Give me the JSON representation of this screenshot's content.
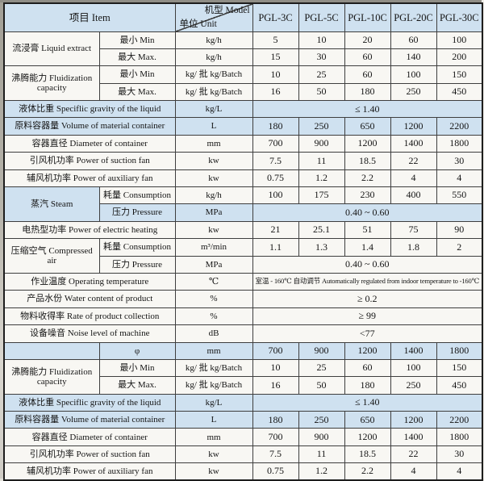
{
  "colors": {
    "shaded_row_bg": "#cfe1f0",
    "paper_bg": "#f8f7f3",
    "grid_line": "#3e3e3e"
  },
  "table": {
    "corner": {
      "item": "项目 Item",
      "model": "机型 Model",
      "unit": "单位 Unit"
    },
    "columns": [
      "PGL-3C",
      "PGL-5C",
      "PGL-10C",
      "PGL-20C",
      "PGL-30C"
    ],
    "rows": [
      {
        "cells": [
          {
            "t": "流浸膏 Liquid extract",
            "rs": 2,
            "c": "label"
          },
          {
            "t": "最小 Min",
            "c": "label"
          },
          {
            "t": "kg/h",
            "c": "unit"
          },
          {
            "t": "5"
          },
          {
            "t": "10"
          },
          {
            "t": "20"
          },
          {
            "t": "60"
          },
          {
            "t": "100"
          }
        ]
      },
      {
        "cells": [
          {
            "t": "最大 Max.",
            "c": "label"
          },
          {
            "t": "kg/h",
            "c": "unit"
          },
          {
            "t": "15"
          },
          {
            "t": "30"
          },
          {
            "t": "60"
          },
          {
            "t": "140"
          },
          {
            "t": "200"
          }
        ]
      },
      {
        "cells": [
          {
            "t": "沸腾能力 Fluidization capacity",
            "rs": 2,
            "c": "label"
          },
          {
            "t": "最小 Min",
            "c": "label"
          },
          {
            "t": "kg/ 批 kg/Batch",
            "c": "unit"
          },
          {
            "t": "10"
          },
          {
            "t": "25"
          },
          {
            "t": "60"
          },
          {
            "t": "100"
          },
          {
            "t": "150"
          }
        ]
      },
      {
        "cells": [
          {
            "t": "最大 Max.",
            "c": "label"
          },
          {
            "t": "kg/ 批 kg/Batch",
            "c": "unit"
          },
          {
            "t": "16"
          },
          {
            "t": "50"
          },
          {
            "t": "180"
          },
          {
            "t": "250"
          },
          {
            "t": "450"
          }
        ]
      },
      {
        "cells": [
          {
            "t": "液体比重 Speciflic gravity of the liquid",
            "cs": 2,
            "c": "label",
            "sh": 1
          },
          {
            "t": "kg/L",
            "c": "unit",
            "sh": 1
          },
          {
            "t": "≤ 1.40",
            "cs": 5,
            "sh": 1
          }
        ]
      },
      {
        "cells": [
          {
            "t": "原料容器量 Volume of material container",
            "cs": 2,
            "c": "label",
            "sh": 1
          },
          {
            "t": "L",
            "c": "unit",
            "sh": 1
          },
          {
            "t": "180",
            "sh": 1
          },
          {
            "t": "250",
            "sh": 1
          },
          {
            "t": "650",
            "sh": 1
          },
          {
            "t": "1200",
            "sh": 1
          },
          {
            "t": "2200",
            "sh": 1
          }
        ]
      },
      {
        "cells": [
          {
            "t": "容器直径 Diameter of container",
            "cs": 2,
            "c": "label"
          },
          {
            "t": "mm",
            "c": "unit"
          },
          {
            "t": "700"
          },
          {
            "t": "900"
          },
          {
            "t": "1200"
          },
          {
            "t": "1400"
          },
          {
            "t": "1800"
          }
        ]
      },
      {
        "cells": [
          {
            "t": "引风机功率 Power of suction fan",
            "cs": 2,
            "c": "label"
          },
          {
            "t": "kw",
            "c": "unit"
          },
          {
            "t": "7.5"
          },
          {
            "t": "11"
          },
          {
            "t": "18.5"
          },
          {
            "t": "22"
          },
          {
            "t": "30"
          }
        ]
      },
      {
        "cells": [
          {
            "t": "辅风机功率 Power of auxiliary fan",
            "cs": 2,
            "c": "label"
          },
          {
            "t": "kw",
            "c": "unit"
          },
          {
            "t": "0.75"
          },
          {
            "t": "1.2"
          },
          {
            "t": "2.2"
          },
          {
            "t": "4"
          },
          {
            "t": "4"
          }
        ]
      },
      {
        "cells": [
          {
            "t": "蒸汽 Steam",
            "rs": 2,
            "c": "label",
            "sh": 1
          },
          {
            "t": "耗量 Consumption",
            "c": "label"
          },
          {
            "t": "kg/h",
            "c": "unit"
          },
          {
            "t": "100"
          },
          {
            "t": "175"
          },
          {
            "t": "230"
          },
          {
            "t": "400"
          },
          {
            "t": "550"
          }
        ]
      },
      {
        "cells": [
          {
            "t": "压力 Pressure",
            "c": "label",
            "sh": 1
          },
          {
            "t": "MPa",
            "c": "unit",
            "sh": 1
          },
          {
            "t": "0.40 ~ 0.60",
            "cs": 5,
            "sh": 1
          }
        ]
      },
      {
        "cells": [
          {
            "t": "电热型功率 Power of electric heating",
            "cs": 2,
            "c": "label"
          },
          {
            "t": "kw",
            "c": "unit"
          },
          {
            "t": "21"
          },
          {
            "t": "25.1"
          },
          {
            "t": "51"
          },
          {
            "t": "75"
          },
          {
            "t": "90"
          }
        ]
      },
      {
        "cells": [
          {
            "t": "压缩空气 Compressed air",
            "rs": 2,
            "c": "label"
          },
          {
            "t": "耗量 Consumption",
            "c": "label"
          },
          {
            "t": "m³/min",
            "c": "unit"
          },
          {
            "t": "1.1"
          },
          {
            "t": "1.3"
          },
          {
            "t": "1.4"
          },
          {
            "t": "1.8"
          },
          {
            "t": "2"
          }
        ]
      },
      {
        "cells": [
          {
            "t": "压力 Pressure",
            "c": "label"
          },
          {
            "t": "MPa",
            "c": "unit"
          },
          {
            "t": "0.40 ~ 0.60",
            "cs": 5
          }
        ]
      },
      {
        "cells": [
          {
            "t": "作业温度 Operating temperature",
            "cs": 2,
            "c": "label"
          },
          {
            "t": "℃",
            "c": "unit"
          },
          {
            "t": "室温 - 160℃ 自动调节 Automatically regulated from indoor temperature to -160℃",
            "cs": 5,
            "c": "smallspan"
          }
        ]
      },
      {
        "cells": [
          {
            "t": "产品水份 Water content of product",
            "cs": 2,
            "c": "label"
          },
          {
            "t": "%",
            "c": "unit"
          },
          {
            "t": "≥ 0.2",
            "cs": 5
          }
        ]
      },
      {
        "cells": [
          {
            "t": "物料收得率 Rate of product collection",
            "cs": 2,
            "c": "label"
          },
          {
            "t": "%",
            "c": "unit"
          },
          {
            "t": "≥ 99",
            "cs": 5
          }
        ]
      },
      {
        "cells": [
          {
            "t": "设备噪音 Noise level of machine",
            "cs": 2,
            "c": "label"
          },
          {
            "t": "dB",
            "c": "unit"
          },
          {
            "t": "<77",
            "cs": 5
          }
        ]
      },
      {
        "cells": [
          {
            "t": "",
            "c": "label",
            "sh": 1
          },
          {
            "t": "φ",
            "c": "label",
            "sh": 1
          },
          {
            "t": "mm",
            "c": "unit",
            "sh": 1
          },
          {
            "t": "700",
            "sh": 1
          },
          {
            "t": "900",
            "sh": 1
          },
          {
            "t": "1200",
            "sh": 1
          },
          {
            "t": "1400",
            "sh": 1
          },
          {
            "t": "1800",
            "sh": 1
          }
        ]
      },
      {
        "cells": [
          {
            "t": "沸腾能力 Fluidization capacity",
            "rs": 2,
            "c": "label"
          },
          {
            "t": "最小 Min",
            "c": "label"
          },
          {
            "t": "kg/ 批 kg/Batch",
            "c": "unit"
          },
          {
            "t": "10"
          },
          {
            "t": "25"
          },
          {
            "t": "60"
          },
          {
            "t": "100"
          },
          {
            "t": "150"
          }
        ]
      },
      {
        "cells": [
          {
            "t": "最大 Max.",
            "c": "label"
          },
          {
            "t": "kg/ 批 kg/Batch",
            "c": "unit"
          },
          {
            "t": "16"
          },
          {
            "t": "50"
          },
          {
            "t": "180"
          },
          {
            "t": "250"
          },
          {
            "t": "450"
          }
        ]
      },
      {
        "cells": [
          {
            "t": "液体比重 Speciflic gravity of the liquid",
            "cs": 2,
            "c": "label",
            "sh": 1
          },
          {
            "t": "kg/L",
            "c": "unit",
            "sh": 1
          },
          {
            "t": "≤ 1.40",
            "cs": 5,
            "sh": 1
          }
        ]
      },
      {
        "cells": [
          {
            "t": "原料容器量 Volume of material container",
            "cs": 2,
            "c": "label",
            "sh": 1
          },
          {
            "t": "L",
            "c": "unit",
            "sh": 1
          },
          {
            "t": "180",
            "sh": 1
          },
          {
            "t": "250",
            "sh": 1
          },
          {
            "t": "650",
            "sh": 1
          },
          {
            "t": "1200",
            "sh": 1
          },
          {
            "t": "2200",
            "sh": 1
          }
        ]
      },
      {
        "cells": [
          {
            "t": "容器直径 Diameter of container",
            "cs": 2,
            "c": "label"
          },
          {
            "t": "mm",
            "c": "unit"
          },
          {
            "t": "700"
          },
          {
            "t": "900"
          },
          {
            "t": "1200"
          },
          {
            "t": "1400"
          },
          {
            "t": "1800"
          }
        ]
      },
      {
        "cells": [
          {
            "t": "引风机功率 Power of suction fan",
            "cs": 2,
            "c": "label"
          },
          {
            "t": "kw",
            "c": "unit"
          },
          {
            "t": "7.5"
          },
          {
            "t": "11"
          },
          {
            "t": "18.5"
          },
          {
            "t": "22"
          },
          {
            "t": "30"
          }
        ]
      },
      {
        "cells": [
          {
            "t": "辅风机功率 Power of auxiliary fan",
            "cs": 2,
            "c": "label"
          },
          {
            "t": "kw",
            "c": "unit"
          },
          {
            "t": "0.75"
          },
          {
            "t": "1.2"
          },
          {
            "t": "2.2"
          },
          {
            "t": "4"
          },
          {
            "t": "4"
          }
        ]
      }
    ]
  }
}
